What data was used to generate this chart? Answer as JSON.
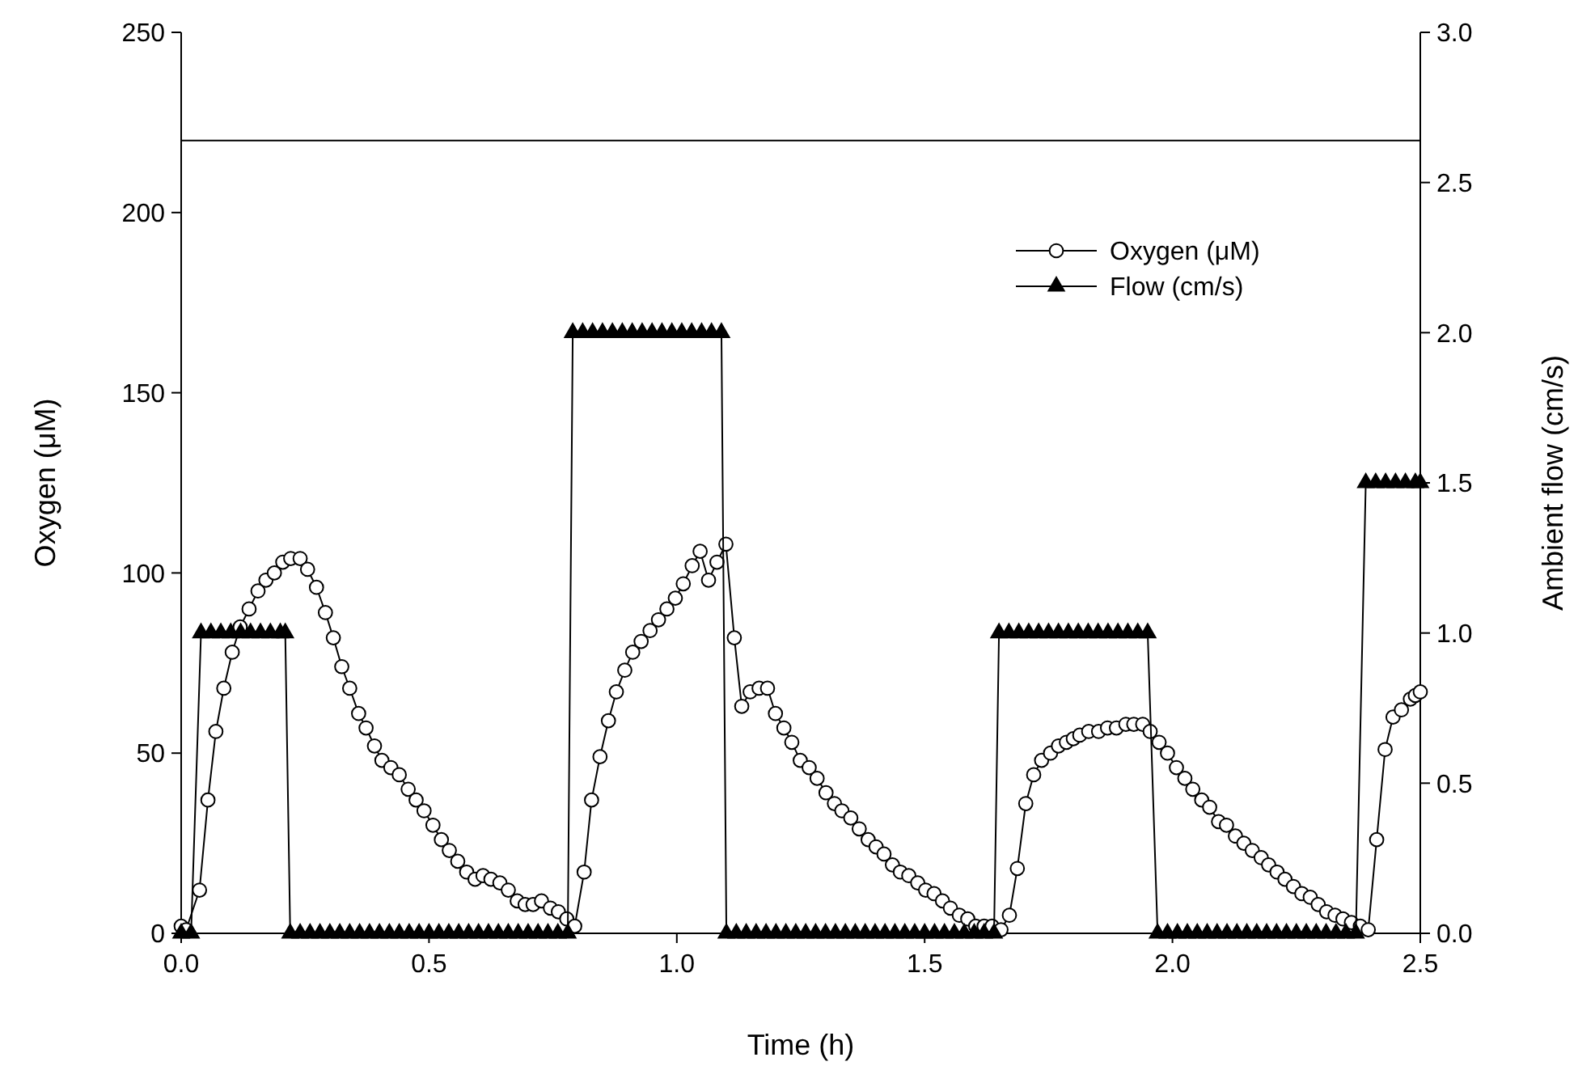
{
  "chart_data": {
    "type": "line",
    "xlabel": "Time (h)",
    "ylabel": "Oxygen (μM)",
    "y2label": "Ambient flow (cm/s)",
    "xlim": [
      0,
      2.5
    ],
    "xticks": [
      {
        "value": 0,
        "label": "0.0"
      },
      {
        "value": 0.5,
        "label": "0.5"
      },
      {
        "value": 1,
        "label": "1.0"
      },
      {
        "value": 1.5,
        "label": "1.5"
      },
      {
        "value": 2,
        "label": "2.0"
      },
      {
        "value": 2.5,
        "label": "2.5"
      }
    ],
    "ylim": [
      0,
      250
    ],
    "yticks": [
      0,
      50,
      100,
      150,
      200,
      250
    ],
    "y2lim": [
      0,
      3
    ],
    "y2ticks": [
      {
        "value": 0,
        "label": "0.0"
      },
      {
        "value": 0.5,
        "label": "0.5"
      },
      {
        "value": 1,
        "label": "1.0"
      },
      {
        "value": 1.5,
        "label": "1.5"
      },
      {
        "value": 2,
        "label": "2.0"
      },
      {
        "value": 2.5,
        "label": "2.5"
      },
      {
        "value": 3,
        "label": "3.0"
      }
    ],
    "grid": false,
    "legend": "top right",
    "line_style": "solid",
    "ref_lines": [
      {
        "axis": "y",
        "value": 220,
        "color": "#000000"
      }
    ],
    "series": [
      {
        "name": "Oxygen (μM)",
        "color": "#000000",
        "marker": "circle",
        "x": [
          0,
          0.01,
          0.037,
          0.054,
          0.07,
          0.086,
          0.103,
          0.119,
          0.137,
          0.155,
          0.171,
          0.188,
          0.205,
          0.221,
          0.24,
          0.255,
          0.273,
          0.291,
          0.307,
          0.324,
          0.34,
          0.358,
          0.373,
          0.39,
          0.405,
          0.423,
          0.44,
          0.458,
          0.474,
          0.49,
          0.508,
          0.525,
          0.541,
          0.558,
          0.576,
          0.593,
          0.609,
          0.625,
          0.643,
          0.66,
          0.678,
          0.694,
          0.71,
          0.727,
          0.745,
          0.761,
          0.778,
          0.794,
          0.813,
          0.828,
          0.845,
          0.862,
          0.878,
          0.895,
          0.911,
          0.928,
          0.946,
          0.963,
          0.98,
          0.997,
          1.013,
          1.031,
          1.047,
          1.064,
          1.081,
          1.099,
          1.116,
          1.131,
          1.148,
          1.166,
          1.183,
          1.199,
          1.216,
          1.232,
          1.249,
          1.267,
          1.283,
          1.301,
          1.318,
          1.333,
          1.351,
          1.368,
          1.386,
          1.402,
          1.418,
          1.435,
          1.451,
          1.468,
          1.486,
          1.502,
          1.519,
          1.536,
          1.552,
          1.57,
          1.587,
          1.603,
          1.62,
          1.636,
          1.654,
          1.671,
          1.687,
          1.704,
          1.72,
          1.736,
          1.754,
          1.77,
          1.786,
          1.8,
          1.813,
          1.831,
          1.851,
          1.869,
          1.887,
          1.906,
          1.922,
          1.94,
          1.955,
          1.973,
          1.99,
          2.008,
          2.025,
          2.041,
          2.059,
          2.075,
          2.093,
          2.109,
          2.127,
          2.144,
          2.161,
          2.179,
          2.194,
          2.211,
          2.227,
          2.244,
          2.261,
          2.278,
          2.294,
          2.311,
          2.328,
          2.344,
          2.361,
          2.379,
          2.395,
          2.412,
          2.429,
          2.445,
          2.462,
          2.48,
          2.49,
          2.5
        ],
        "values": [
          2,
          1,
          12,
          37,
          56,
          68,
          78,
          85,
          90,
          95,
          98,
          100,
          103,
          104,
          104,
          101,
          96,
          89,
          82,
          74,
          68,
          61,
          57,
          52,
          48,
          46,
          44,
          40,
          37,
          34,
          30,
          26,
          23,
          20,
          17,
          15,
          16,
          15,
          14,
          12,
          9,
          8,
          8,
          9,
          7,
          6,
          4,
          2,
          17,
          37,
          49,
          59,
          67,
          73,
          78,
          81,
          84,
          87,
          90,
          93,
          97,
          102,
          106,
          98,
          103,
          108,
          82,
          63,
          67,
          68,
          68,
          61,
          57,
          53,
          48,
          46,
          43,
          39,
          36,
          34,
          32,
          29,
          26,
          24,
          22,
          19,
          17,
          16,
          14,
          12,
          11,
          9,
          7,
          5,
          4,
          2,
          2,
          2,
          1,
          5,
          18,
          36,
          44,
          48,
          50,
          52,
          53,
          54,
          55,
          56,
          56,
          57,
          57,
          58,
          58,
          58,
          56,
          53,
          50,
          46,
          43,
          40,
          37,
          35,
          31,
          30,
          27,
          25,
          23,
          21,
          19,
          17,
          15,
          13,
          11,
          10,
          8,
          6,
          5,
          4,
          3,
          2,
          1,
          26,
          51,
          60,
          62,
          65,
          66,
          67
        ]
      },
      {
        "name": "Flow (cm/s)",
        "color": "#000000",
        "marker": "triangle",
        "axis": "y2",
        "x": [
          0,
          0.02,
          0.04,
          0.06,
          0.08,
          0.1,
          0.12,
          0.14,
          0.16,
          0.18,
          0.2,
          0.21,
          0.22,
          0.24,
          0.26,
          0.28,
          0.3,
          0.32,
          0.34,
          0.36,
          0.38,
          0.4,
          0.42,
          0.44,
          0.46,
          0.48,
          0.5,
          0.52,
          0.54,
          0.56,
          0.58,
          0.6,
          0.62,
          0.64,
          0.66,
          0.68,
          0.7,
          0.72,
          0.74,
          0.76,
          0.78,
          0.79,
          0.81,
          0.83,
          0.85,
          0.87,
          0.89,
          0.91,
          0.93,
          0.95,
          0.97,
          0.99,
          1.01,
          1.03,
          1.05,
          1.07,
          1.09,
          1.1,
          1.12,
          1.14,
          1.16,
          1.18,
          1.2,
          1.22,
          1.24,
          1.26,
          1.28,
          1.3,
          1.32,
          1.34,
          1.36,
          1.38,
          1.4,
          1.42,
          1.44,
          1.46,
          1.48,
          1.5,
          1.52,
          1.54,
          1.56,
          1.58,
          1.6,
          1.62,
          1.64,
          1.65,
          1.67,
          1.69,
          1.71,
          1.73,
          1.75,
          1.77,
          1.79,
          1.81,
          1.83,
          1.85,
          1.87,
          1.89,
          1.91,
          1.93,
          1.95,
          1.97,
          1.99,
          2.01,
          2.03,
          2.05,
          2.07,
          2.09,
          2.11,
          2.13,
          2.15,
          2.17,
          2.19,
          2.21,
          2.23,
          2.25,
          2.27,
          2.29,
          2.31,
          2.33,
          2.35,
          2.37,
          2.39,
          2.41,
          2.43,
          2.45,
          2.47,
          2.49,
          2.5
        ],
        "values": [
          0,
          0,
          1,
          1,
          1,
          1,
          1,
          1,
          1,
          1,
          1,
          1,
          0,
          0,
          0,
          0,
          0,
          0,
          0,
          0,
          0,
          0,
          0,
          0,
          0,
          0,
          0,
          0,
          0,
          0,
          0,
          0,
          0,
          0,
          0,
          0,
          0,
          0,
          0,
          0,
          0,
          2,
          2,
          2,
          2,
          2,
          2,
          2,
          2,
          2,
          2,
          2,
          2,
          2,
          2,
          2,
          2,
          0,
          0,
          0,
          0,
          0,
          0,
          0,
          0,
          0,
          0,
          0,
          0,
          0,
          0,
          0,
          0,
          0,
          0,
          0,
          0,
          0,
          0,
          0,
          0,
          0,
          0,
          0,
          0,
          1,
          1,
          1,
          1,
          1,
          1,
          1,
          1,
          1,
          1,
          1,
          1,
          1,
          1,
          1,
          1,
          0,
          0,
          0,
          0,
          0,
          0,
          0,
          0,
          0,
          0,
          0,
          0,
          0,
          0,
          0,
          0,
          0,
          0,
          0,
          0,
          0,
          1.5,
          1.5,
          1.5,
          1.5,
          1.5,
          1.5,
          1.5
        ]
      }
    ]
  }
}
